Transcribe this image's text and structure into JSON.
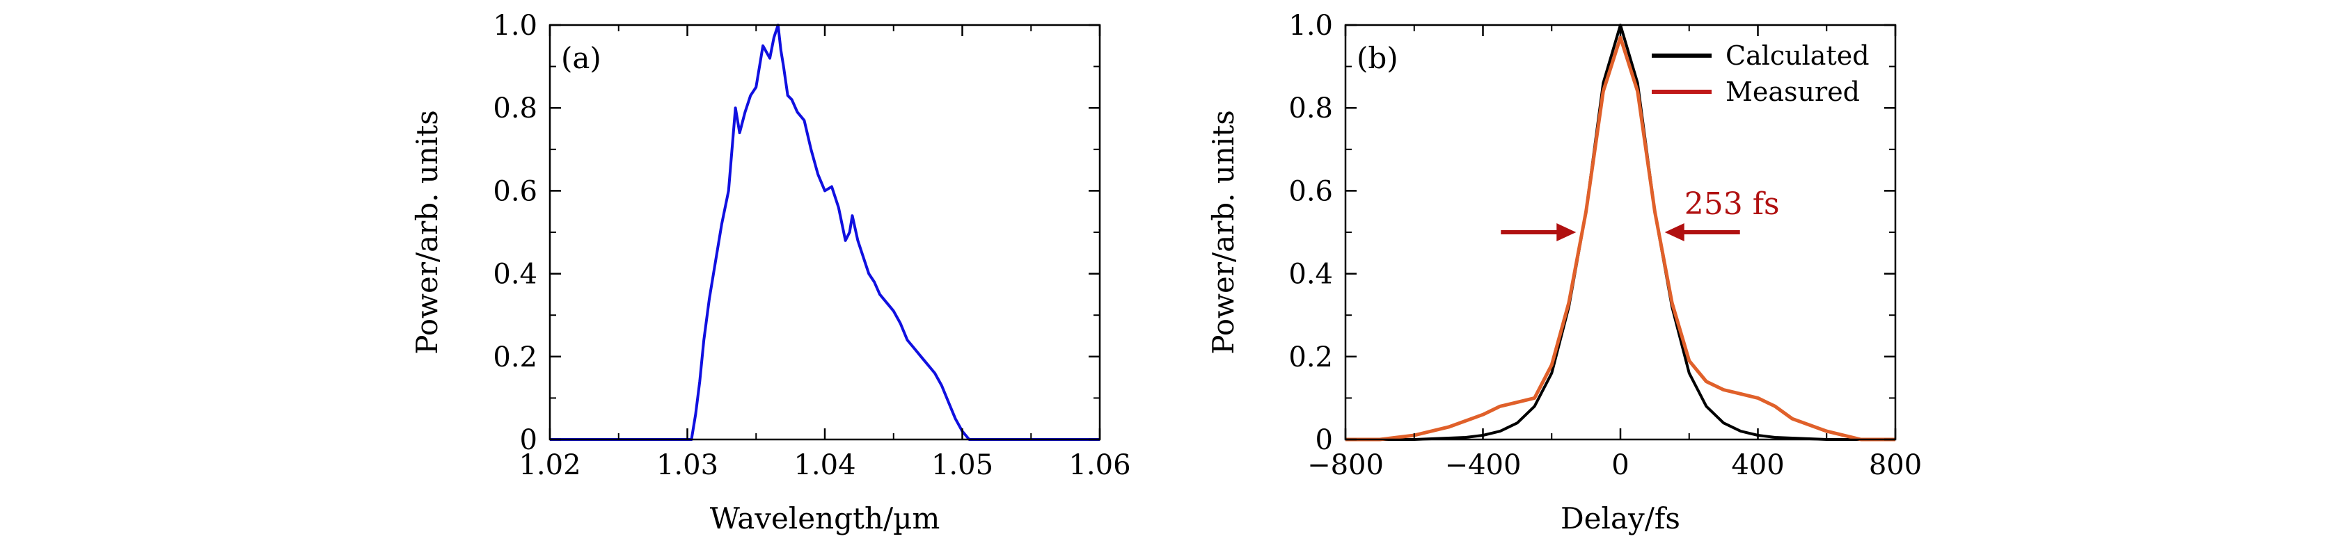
{
  "chart_data": [
    {
      "type": "line",
      "panel_label": "(a)",
      "xlabel": "Wavelength/µm",
      "ylabel": "Power/arb. units",
      "xlim": [
        1.02,
        1.06
      ],
      "ylim": [
        0,
        1.0
      ],
      "x_ticks": [
        1.02,
        1.03,
        1.04,
        1.05,
        1.06
      ],
      "x_tick_labels": [
        "1.02",
        "1.03",
        "1.04",
        "1.05",
        "1.06"
      ],
      "y_ticks": [
        0,
        0.2,
        0.4,
        0.6,
        0.8,
        1.0
      ],
      "y_tick_labels": [
        "0",
        "0.2",
        "0.4",
        "0.6",
        "0.8",
        "1.0"
      ],
      "grid": false,
      "color": "#1010e0",
      "series": [
        {
          "x": [
            1.02,
            1.0303,
            1.0306,
            1.0309,
            1.0312,
            1.0316,
            1.032,
            1.0325,
            1.033,
            1.0335,
            1.0338,
            1.0342,
            1.0346,
            1.035,
            1.0355,
            1.036,
            1.0363,
            1.0366,
            1.0368,
            1.037,
            1.0373,
            1.0376,
            1.038,
            1.0385,
            1.039,
            1.0395,
            1.04,
            1.0405,
            1.041,
            1.0415,
            1.0418,
            1.042,
            1.0424,
            1.0428,
            1.0432,
            1.0436,
            1.044,
            1.0445,
            1.045,
            1.0455,
            1.046,
            1.0465,
            1.047,
            1.0475,
            1.048,
            1.0485,
            1.049,
            1.0495,
            1.05,
            1.0505,
            1.051,
            1.0515,
            1.052,
            1.06
          ],
          "y": [
            0.0,
            0.0,
            0.06,
            0.14,
            0.24,
            0.34,
            0.42,
            0.52,
            0.6,
            0.8,
            0.74,
            0.79,
            0.83,
            0.85,
            0.95,
            0.92,
            0.97,
            1.0,
            0.94,
            0.9,
            0.83,
            0.82,
            0.79,
            0.77,
            0.7,
            0.64,
            0.6,
            0.61,
            0.56,
            0.48,
            0.5,
            0.54,
            0.48,
            0.44,
            0.4,
            0.38,
            0.35,
            0.33,
            0.31,
            0.28,
            0.24,
            0.22,
            0.2,
            0.18,
            0.16,
            0.13,
            0.09,
            0.05,
            0.02,
            0.0,
            0.0,
            0.0,
            0.0,
            0.0
          ]
        }
      ]
    },
    {
      "type": "line",
      "panel_label": "(b)",
      "xlabel": "Delay/fs",
      "ylabel": "Power/arb. units",
      "xlim": [
        -800,
        800
      ],
      "ylim": [
        0,
        1.0
      ],
      "x_ticks": [
        -800,
        -400,
        0,
        400,
        800
      ],
      "x_tick_labels": [
        "−800",
        "−400",
        "0",
        "400",
        "800"
      ],
      "y_ticks": [
        0,
        0.2,
        0.4,
        0.6,
        0.8,
        1.0
      ],
      "y_tick_labels": [
        "0",
        "0.2",
        "0.4",
        "0.6",
        "0.8",
        "1.0"
      ],
      "grid": false,
      "legend_position": "top-right",
      "annotation": "253 fs",
      "series": [
        {
          "name": "Calculated",
          "color": "#000000",
          "x": [
            -800,
            -600,
            -450,
            -400,
            -350,
            -300,
            -250,
            -200,
            -150,
            -100,
            -50,
            0,
            50,
            100,
            150,
            200,
            250,
            300,
            350,
            400,
            450,
            600,
            800
          ],
          "y": [
            0.0,
            0.0,
            0.005,
            0.01,
            0.02,
            0.04,
            0.08,
            0.16,
            0.32,
            0.55,
            0.86,
            1.0,
            0.86,
            0.55,
            0.32,
            0.16,
            0.08,
            0.04,
            0.02,
            0.01,
            0.005,
            0.0,
            0.0
          ]
        },
        {
          "name": "Measured",
          "color": "#e0602a",
          "x": [
            -800,
            -700,
            -600,
            -500,
            -400,
            -350,
            -300,
            -250,
            -200,
            -150,
            -100,
            -50,
            0,
            50,
            100,
            150,
            200,
            250,
            300,
            350,
            400,
            450,
            500,
            600,
            700,
            800
          ],
          "y": [
            0.0,
            0.0,
            0.01,
            0.03,
            0.06,
            0.08,
            0.09,
            0.1,
            0.18,
            0.33,
            0.55,
            0.84,
            0.97,
            0.84,
            0.55,
            0.33,
            0.19,
            0.14,
            0.12,
            0.11,
            0.1,
            0.08,
            0.05,
            0.02,
            0.0,
            0.0
          ]
        }
      ]
    }
  ]
}
